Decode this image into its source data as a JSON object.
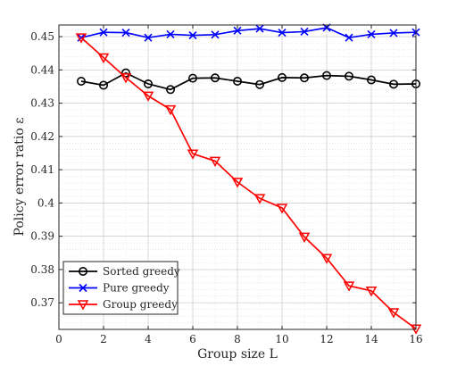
{
  "chart_data": {
    "type": "line",
    "xlabel": "Group size L",
    "ylabel": "Policy error ratio ε",
    "xlim": [
      0,
      16
    ],
    "ylim": [
      0.362,
      0.4535
    ],
    "xticks": [
      0,
      2,
      4,
      6,
      8,
      10,
      12,
      14,
      16
    ],
    "xtick_labels": [
      "0",
      "2",
      "4",
      "6",
      "8",
      "10",
      "12",
      "14",
      "16"
    ],
    "yticks": [
      0.37,
      0.38,
      0.39,
      0.4,
      0.41,
      0.42,
      0.43,
      0.44,
      0.45
    ],
    "ytick_labels": [
      "0.37",
      "0.38",
      "0.39",
      "0.4",
      "0.41",
      "0.42",
      "0.43",
      "0.44",
      "0.45"
    ],
    "grid": true,
    "legend_position": "bottom-left",
    "x": [
      1,
      2,
      3,
      4,
      5,
      6,
      7,
      8,
      9,
      10,
      11,
      12,
      13,
      14,
      15,
      16
    ],
    "series": [
      {
        "name": "Sorted greedy",
        "color": "#000000",
        "marker": "circle",
        "values": [
          0.4366,
          0.4354,
          0.4391,
          0.4358,
          0.4341,
          0.4375,
          0.4376,
          0.4366,
          0.4356,
          0.4377,
          0.4376,
          0.4383,
          0.4381,
          0.437,
          0.4357,
          0.4358
        ]
      },
      {
        "name": "Pure greedy",
        "color": "#0000ff",
        "marker": "x",
        "values": [
          0.4497,
          0.4513,
          0.4512,
          0.4497,
          0.4507,
          0.4504,
          0.4506,
          0.4518,
          0.4524,
          0.4512,
          0.4515,
          0.4527,
          0.4497,
          0.4507,
          0.4511,
          0.4513
        ]
      },
      {
        "name": "Group greedy",
        "color": "#ff0000",
        "marker": "triangle-down",
        "values": [
          0.4497,
          0.4437,
          0.4377,
          0.4322,
          0.4281,
          0.4148,
          0.4126,
          0.4063,
          0.4014,
          0.3985,
          0.3898,
          0.3834,
          0.3751,
          0.3736,
          0.3671,
          0.3622
        ]
      }
    ]
  }
}
